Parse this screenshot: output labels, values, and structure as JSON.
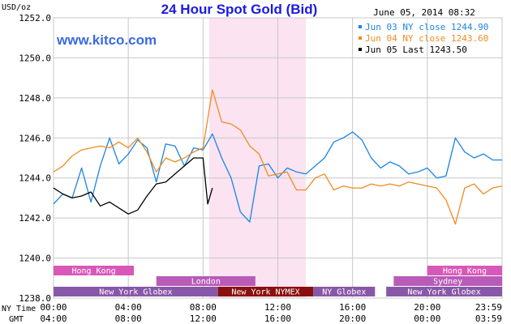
{
  "header": {
    "title": "24 Hour Spot Gold (Bid)",
    "timestamp": "June 05, 2014 08:32",
    "unit": "USD/oz",
    "watermark": "www.kitco.com"
  },
  "legend": [
    {
      "label": "Jun 03 NY close 1244.90",
      "color": "#1a85e6"
    },
    {
      "label": "Jun 04 NY close 1243.60",
      "color": "#f08c1e"
    },
    {
      "label": "Jun 05 Last 1243.50",
      "color": "#000000"
    }
  ],
  "sessions": [
    {
      "label": "Hong Kong",
      "start": 0,
      "end": 4.3,
      "row": 0,
      "color": "#d858b8"
    },
    {
      "label": "Hong Kong",
      "start": 20,
      "end": 24,
      "row": 0,
      "color": "#d858b8"
    },
    {
      "label": "London",
      "start": 5.5,
      "end": 10.8,
      "row": 1,
      "color": "#b85cb8"
    },
    {
      "label": "Sydney",
      "start": 18.2,
      "end": 24,
      "row": 1,
      "color": "#b85cb8"
    },
    {
      "label": "New York Globex",
      "start": 0,
      "end": 8.8,
      "row": 2,
      "color": "#8858a8"
    },
    {
      "label": "New York NYMEX",
      "start": 8.8,
      "end": 13.9,
      "row": 2,
      "color": "#8a1010"
    },
    {
      "label": "NY Globex",
      "start": 13.9,
      "end": 17.2,
      "row": 2,
      "color": "#8858a8"
    },
    {
      "label": "New York Globex",
      "start": 17.8,
      "end": 24,
      "row": 2,
      "color": "#8858a8"
    }
  ],
  "time_axis": {
    "ny_label": "NY Time",
    "gmt_label": "GMT",
    "ny_ticks": [
      "00:00",
      "04:00",
      "08:00",
      "12:00",
      "16:00",
      "20:00",
      "23:59"
    ],
    "gmt_ticks": [
      "04:00",
      "08:00",
      "12:00",
      "16:00",
      "20:00",
      "00:00",
      "03:59"
    ]
  },
  "chart_data": {
    "type": "line",
    "title": "24 Hour Spot Gold (Bid)",
    "ylabel": "USD/oz",
    "xlabel": "NY Time",
    "ylim": [
      1238,
      1252
    ],
    "xlim": [
      0,
      24
    ],
    "yticks": [
      "1238.0",
      "1240.0",
      "1242.0",
      "1244.0",
      "1246.0",
      "1248.0",
      "1250.0",
      "1252.0"
    ],
    "grid": true,
    "legend_position": "top-right",
    "highlight_band": {
      "x_start": 8.33,
      "x_end": 13.5,
      "color": "#fbe3f1"
    },
    "series": [
      {
        "name": "Jun 03 NY close 1244.90",
        "color": "#1a85e6",
        "x": [
          0,
          0.5,
          1,
          1.5,
          2,
          2.5,
          3,
          3.5,
          4,
          4.5,
          5,
          5.5,
          6,
          6.5,
          7,
          7.5,
          8,
          8.5,
          9,
          9.5,
          10,
          10.5,
          11,
          11.5,
          12,
          12.5,
          13,
          13.5,
          14,
          14.5,
          15,
          15.5,
          16,
          16.5,
          17,
          17.5,
          18,
          18.5,
          19,
          19.5,
          20,
          20.5,
          21,
          21.5,
          22,
          22.5,
          23,
          23.5,
          24
        ],
        "y": [
          1242.7,
          1243.2,
          1243.0,
          1244.5,
          1242.8,
          1244.6,
          1246.0,
          1244.7,
          1245.2,
          1245.9,
          1245.5,
          1243.8,
          1245.7,
          1245.6,
          1244.6,
          1245.5,
          1245.4,
          1246.2,
          1245.0,
          1244.0,
          1242.3,
          1241.8,
          1244.6,
          1244.7,
          1244.0,
          1244.5,
          1244.3,
          1244.2,
          1244.6,
          1245.0,
          1245.8,
          1246.0,
          1246.3,
          1245.9,
          1245.0,
          1244.5,
          1244.8,
          1244.6,
          1244.2,
          1244.3,
          1244.5,
          1244.0,
          1244.1,
          1246.0,
          1245.3,
          1245.0,
          1245.2,
          1244.9,
          1244.9
        ]
      },
      {
        "name": "Jun 04 NY close 1243.60",
        "color": "#f08c1e",
        "x": [
          0,
          0.5,
          1,
          1.5,
          2,
          2.5,
          3,
          3.5,
          4,
          4.5,
          5,
          5.5,
          6,
          6.5,
          7,
          7.5,
          8,
          8.5,
          9,
          9.5,
          10,
          10.5,
          11,
          11.5,
          12,
          12.5,
          13,
          13.5,
          14,
          14.5,
          15,
          15.5,
          16,
          16.5,
          17,
          17.5,
          18,
          18.5,
          19,
          19.5,
          20,
          20.5,
          21,
          21.5,
          22,
          22.5,
          23,
          23.5,
          24
        ],
        "y": [
          1244.3,
          1244.6,
          1245.1,
          1245.4,
          1245.5,
          1245.6,
          1245.5,
          1245.8,
          1245.5,
          1246.0,
          1245.3,
          1244.3,
          1245.0,
          1244.8,
          1245.0,
          1245.3,
          1245.5,
          1248.4,
          1246.8,
          1246.7,
          1246.4,
          1245.6,
          1245.2,
          1244.1,
          1244.2,
          1244.3,
          1243.4,
          1243.4,
          1244.0,
          1244.2,
          1243.4,
          1243.6,
          1243.5,
          1243.5,
          1243.7,
          1243.6,
          1243.7,
          1243.6,
          1243.8,
          1243.7,
          1243.6,
          1243.5,
          1242.9,
          1241.7,
          1243.5,
          1243.7,
          1243.2,
          1243.5,
          1243.6
        ]
      },
      {
        "name": "Jun 05 Last 1243.50",
        "color": "#000000",
        "x": [
          0,
          0.5,
          1,
          1.5,
          2,
          2.5,
          3,
          3.5,
          4,
          4.5,
          5,
          5.5,
          6,
          6.5,
          7,
          7.5,
          8,
          8.25,
          8.5
        ],
        "y": [
          1243.5,
          1243.2,
          1243.0,
          1243.1,
          1243.3,
          1242.6,
          1242.8,
          1242.5,
          1242.2,
          1242.4,
          1243.1,
          1243.7,
          1243.8,
          1244.2,
          1244.6,
          1245.0,
          1245.0,
          1242.7,
          1243.5
        ]
      }
    ]
  }
}
